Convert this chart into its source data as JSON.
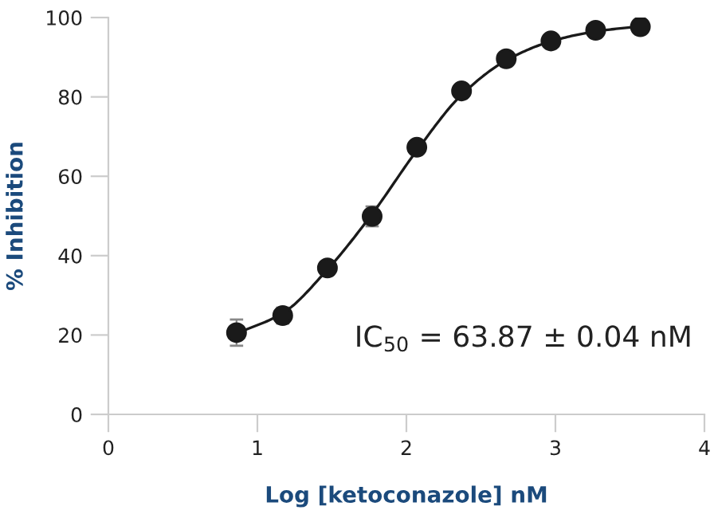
{
  "chart_data": {
    "type": "scatter",
    "xlabel": "Log [ketoconazole] nM",
    "ylabel": "% Inhibition",
    "annotations": [
      "IC$_{50}$ = 63.87 ± 0.04 nM"
    ],
    "xlim": [
      0,
      4
    ],
    "ylim": [
      0,
      100
    ],
    "xticks": [
      0,
      1,
      2,
      3,
      4
    ],
    "yticks": [
      0,
      20,
      40,
      60,
      80,
      100
    ],
    "grid": false,
    "marker": "circle",
    "series": [
      {
        "color": "#1a1a1a",
        "x": [
          0.86,
          1.17,
          1.47,
          1.77,
          2.07,
          2.37,
          2.67,
          2.97,
          3.27,
          3.57
        ],
        "values": [
          20.6,
          24.9,
          36.9,
          49.9,
          67.3,
          81.5,
          89.6,
          94.1,
          96.8,
          97.7
        ],
        "errors": [
          3.3,
          2,
          1.5,
          2.5,
          null,
          null,
          null,
          null,
          null,
          null
        ]
      },
      {
        "type": "line",
        "color": "#1a1a1a",
        "line_style": "solid",
        "marker": "none",
        "x": [
          0.86,
          1.17,
          1.47,
          1.77,
          2.07,
          2.37,
          2.67,
          2.97,
          3.27,
          3.57
        ],
        "values": [
          20.4,
          25.5,
          36.5,
          50.5,
          66.5,
          80.5,
          89.2,
          94.0,
          96.5,
          97.8
        ]
      }
    ]
  }
}
